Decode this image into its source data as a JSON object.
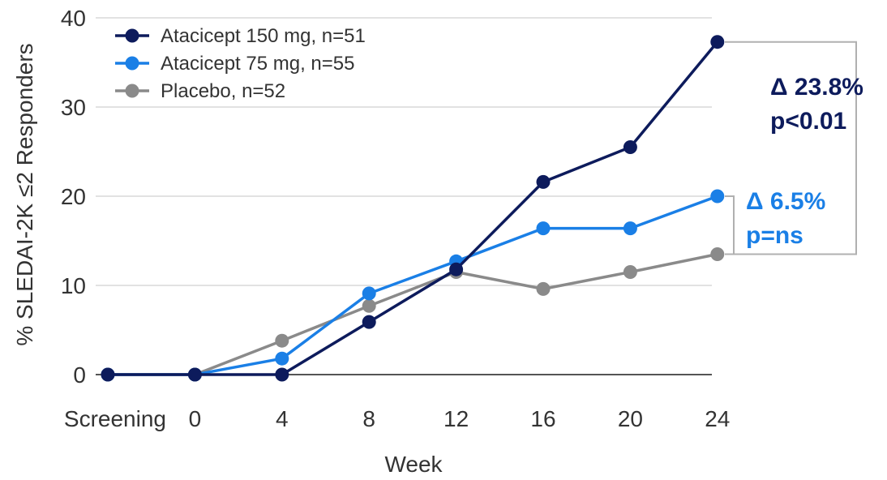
{
  "chart_data": {
    "type": "line",
    "xlabel": "Week",
    "ylabel": "% SLEDAI-2K ≤2 Responders",
    "categories": [
      "Screening",
      "0",
      "4",
      "8",
      "12",
      "16",
      "20",
      "24"
    ],
    "ylim": [
      0,
      40
    ],
    "yticks": [
      0,
      10,
      20,
      30,
      40
    ],
    "grid": true,
    "legend_position": "top-left",
    "series": [
      {
        "name": "Atacicept 150 mg, n=51",
        "color": "#0d1b5c",
        "values": [
          0,
          0,
          0,
          5.9,
          11.8,
          21.6,
          25.5,
          37.3
        ]
      },
      {
        "name": "Atacicept 75 mg, n=55",
        "color": "#1a7fe6",
        "values": [
          0,
          0,
          1.8,
          9.1,
          12.7,
          16.4,
          16.4,
          20.0
        ]
      },
      {
        "name": "Placebo, n=52",
        "color": "#8a8a8a",
        "values": [
          0,
          0,
          3.8,
          7.7,
          11.5,
          9.6,
          11.5,
          13.5
        ]
      }
    ],
    "annotations": [
      {
        "line1": "Δ 23.8%",
        "line2": "p<0.01",
        "color": "#0d1b5c"
      },
      {
        "line1": "Δ 6.5%",
        "line2": "p=ns",
        "color": "#1a7fe6"
      }
    ]
  }
}
